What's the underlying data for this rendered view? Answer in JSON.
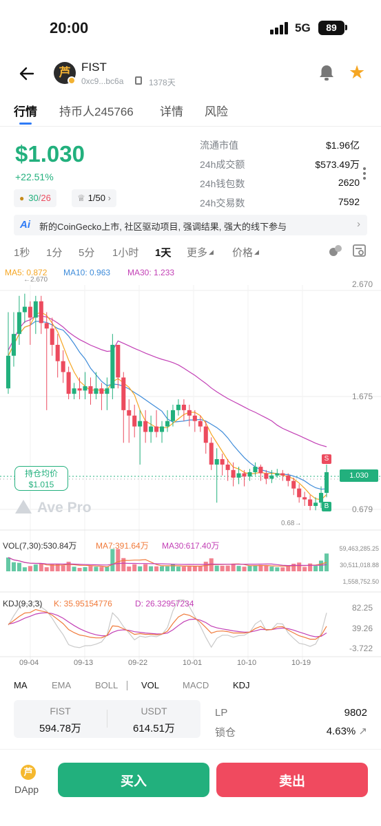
{
  "status_bar": {
    "time": "20:00",
    "network": "5G",
    "battery": "89"
  },
  "header": {
    "token_name": "FIST",
    "address": "0xc9...bc6a",
    "age": "1378天",
    "logo_glyph": "FIST-logo"
  },
  "tabs": [
    {
      "label": "行情"
    },
    {
      "label": "持币人245766"
    },
    {
      "label": "详情"
    },
    {
      "label": "风险"
    }
  ],
  "summary": {
    "price": "$1.030",
    "change": "+22.51%",
    "buy_count": "30",
    "sell_count": "26",
    "rank": "1/50",
    "rank_chevron": "›"
  },
  "stats": [
    {
      "label": "流通市值",
      "value": "$1.96亿"
    },
    {
      "label": "24h成交额",
      "value": "$573.49万"
    },
    {
      "label": "24h钱包数",
      "value": "2620"
    },
    {
      "label": "24h交易数",
      "value": "7592"
    }
  ],
  "news": {
    "icon_label": "Ai",
    "text": "新的CoinGecko上市, 社区驱动项目, 强调结果, 强大的线下参与"
  },
  "intervals": [
    {
      "label": "1秒"
    },
    {
      "label": "1分"
    },
    {
      "label": "5分"
    },
    {
      "label": "1小时"
    },
    {
      "label": "1天"
    },
    {
      "label": "更多"
    },
    {
      "label": "价格"
    }
  ],
  "chart_legends": {
    "ma5": "MA5: 0.872",
    "ma10": "MA10: 0.963",
    "ma30": "MA30: 1.233",
    "vol": "VOL(7,30):530.84万",
    "vol_ma7": "MA7:391.64万",
    "vol_ma30": "MA30:617.40万",
    "kdj": "KDJ(9,3,3)",
    "kdj_k": "K: 35.95154776",
    "kdj_d": "D: 26.32957234"
  },
  "chart_labels": {
    "peak": "←2.670",
    "low": "0.68→",
    "avg_title": "持仓均价",
    "avg_value": "$1.015",
    "current_price": "1.030",
    "watermark": "Ave Pro",
    "sell_marker": "S",
    "buy_marker": "B"
  },
  "colors": {
    "up": "#22b07d",
    "down": "#ec4b5e",
    "ma5": "#f5a623",
    "ma10": "#3d8bd9",
    "ma30": "#c23fb5",
    "kdj_k": "#f07a3a",
    "kdj_d": "#c23fb5"
  },
  "chart_data": {
    "type": "candlestick",
    "title": "",
    "price_axis": [
      "2.670",
      "1.675",
      "0.679"
    ],
    "volume_axis": [
      "59,463,285.25",
      "30,511,018.88",
      "1,558,752.50"
    ],
    "kdj_axis": [
      "82.25",
      "39.26",
      "-3.722"
    ],
    "x_ticks": [
      "09-04",
      "09-13",
      "09-22",
      "10-01",
      "10-10",
      "10-19"
    ],
    "ylim": [
      0.6,
      2.75
    ],
    "candles": [
      [
        1.8,
        2.1,
        2.5,
        1.75
      ],
      [
        2.1,
        2.3,
        2.5,
        2.0
      ],
      [
        2.3,
        2.5,
        2.65,
        2.2
      ],
      [
        2.5,
        2.55,
        2.67,
        2.4
      ],
      [
        2.55,
        2.45,
        2.6,
        2.2
      ],
      [
        2.45,
        2.6,
        2.65,
        2.3
      ],
      [
        2.6,
        2.4,
        2.65,
        2.3
      ],
      [
        2.4,
        2.35,
        2.5,
        1.6
      ],
      [
        2.35,
        2.2,
        2.45,
        2.1
      ],
      [
        2.2,
        2.05,
        2.3,
        1.9
      ],
      [
        2.05,
        1.95,
        2.15,
        1.85
      ],
      [
        1.95,
        1.75,
        2.0,
        1.7
      ],
      [
        1.75,
        1.8,
        1.85,
        1.7
      ],
      [
        1.8,
        1.78,
        1.9,
        1.7
      ],
      [
        1.78,
        1.82,
        1.95,
        1.7
      ],
      [
        1.82,
        1.75,
        1.9,
        1.65
      ],
      [
        1.75,
        1.8,
        1.95,
        1.7
      ],
      [
        1.8,
        1.75,
        1.85,
        1.6
      ],
      [
        1.75,
        1.8,
        1.9,
        1.6
      ],
      [
        1.8,
        2.2,
        2.3,
        1.7
      ],
      [
        2.2,
        1.9,
        2.2,
        1.8
      ],
      [
        1.9,
        1.6,
        1.95,
        1.3
      ],
      [
        1.6,
        1.55,
        1.7,
        1.3
      ],
      [
        1.55,
        1.45,
        1.65,
        1.35
      ],
      [
        1.45,
        1.5,
        1.6,
        1.1
      ],
      [
        1.5,
        1.4,
        1.6,
        1.3
      ],
      [
        1.4,
        1.45,
        1.55,
        1.3
      ],
      [
        1.45,
        1.4,
        1.6,
        1.35
      ],
      [
        1.4,
        1.45,
        1.5,
        1.3
      ],
      [
        1.45,
        1.5,
        1.6,
        1.4
      ],
      [
        1.5,
        1.6,
        1.65,
        1.45
      ],
      [
        1.6,
        1.65,
        1.7,
        1.55
      ],
      [
        1.65,
        1.6,
        1.7,
        1.5
      ],
      [
        1.6,
        1.55,
        1.65,
        1.45
      ],
      [
        1.55,
        1.5,
        1.6,
        1.4
      ],
      [
        1.5,
        1.45,
        1.55,
        1.4
      ],
      [
        1.45,
        1.3,
        1.5,
        1.2
      ],
      [
        1.3,
        1.1,
        1.35,
        1.05
      ],
      [
        1.1,
        1.15,
        1.25,
        0.75
      ],
      [
        1.15,
        1.1,
        1.2,
        1.0
      ],
      [
        1.1,
        1.05,
        1.15,
        0.95
      ],
      [
        1.05,
        0.98,
        1.12,
        0.9
      ],
      [
        0.98,
        1.02,
        1.08,
        0.92
      ],
      [
        1.02,
        0.99,
        1.05,
        0.9
      ],
      [
        0.99,
        1.03,
        1.06,
        0.95
      ],
      [
        1.03,
        1.08,
        1.12,
        1.0
      ],
      [
        1.08,
        1.02,
        1.1,
        0.95
      ],
      [
        1.02,
        0.97,
        1.05,
        0.92
      ],
      [
        0.97,
        1.0,
        1.05,
        0.93
      ],
      [
        1.0,
        1.02,
        1.06,
        0.98
      ],
      [
        1.02,
        1.0,
        1.05,
        0.95
      ],
      [
        1.0,
        0.95,
        1.02,
        0.9
      ],
      [
        0.95,
        0.88,
        0.98,
        0.82
      ],
      [
        0.88,
        0.8,
        0.92,
        0.75
      ],
      [
        0.8,
        0.78,
        0.85,
        0.72
      ],
      [
        0.78,
        0.72,
        0.82,
        0.68
      ],
      [
        0.72,
        0.75,
        0.8,
        0.68
      ],
      [
        0.75,
        0.84,
        0.9,
        0.7
      ],
      [
        0.84,
        1.03,
        1.1,
        0.8
      ]
    ]
  }
}
